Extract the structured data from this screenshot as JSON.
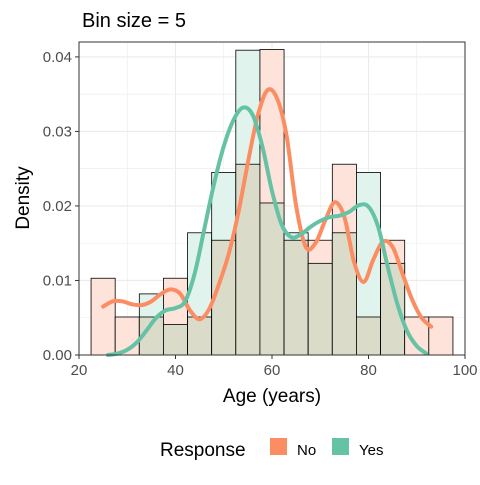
{
  "chart_data": {
    "type": "histogram",
    "title": "Bin size = 5",
    "xlabel": "Age (years)",
    "ylabel": "Density",
    "xlim": [
      20,
      100
    ],
    "ylim": [
      0,
      0.042
    ],
    "x_ticks": [
      20,
      40,
      60,
      80,
      100
    ],
    "y_ticks": [
      0.0,
      0.01,
      0.02,
      0.03,
      0.04
    ],
    "x_tick_labels": [
      "20",
      "40",
      "60",
      "80",
      "100"
    ],
    "y_tick_labels": [
      "0.00",
      "0.01",
      "0.02",
      "0.03",
      "0.04"
    ],
    "grid": true,
    "bin_width": 5,
    "bin_starts": [
      22.5,
      27.5,
      32.5,
      37.5,
      42.5,
      47.5,
      52.5,
      57.5,
      62.5,
      67.5,
      72.5,
      77.5,
      82.5,
      87.5,
      92.5
    ],
    "series": [
      {
        "name": "No",
        "color": "#fc8d62",
        "bin_density": [
          0.0103,
          0.0051,
          0.0051,
          0.0103,
          0.0051,
          0.0154,
          0.0256,
          0.041,
          0.0154,
          0.0154,
          0.0256,
          0.0051,
          0.0154,
          0.0051,
          0.0051
        ],
        "density_curve": [
          [
            25,
            0.0065
          ],
          [
            27,
            0.0072
          ],
          [
            29,
            0.0072
          ],
          [
            31,
            0.0068
          ],
          [
            33,
            0.0067
          ],
          [
            35,
            0.0072
          ],
          [
            37,
            0.0082
          ],
          [
            39,
            0.0088
          ],
          [
            41,
            0.0082
          ],
          [
            43,
            0.006
          ],
          [
            45,
            0.0048
          ],
          [
            47,
            0.0062
          ],
          [
            49,
            0.0095
          ],
          [
            51,
            0.0135
          ],
          [
            53,
            0.019
          ],
          [
            55,
            0.0258
          ],
          [
            57,
            0.032
          ],
          [
            59,
            0.0355
          ],
          [
            61,
            0.0345
          ],
          [
            63,
            0.0295
          ],
          [
            65,
            0.02
          ],
          [
            67,
            0.0145
          ],
          [
            69,
            0.015
          ],
          [
            71,
            0.018
          ],
          [
            73,
            0.0205
          ],
          [
            75,
            0.0185
          ],
          [
            77,
            0.0125
          ],
          [
            79,
            0.0098
          ],
          [
            81,
            0.0128
          ],
          [
            83,
            0.0152
          ],
          [
            85,
            0.0145
          ],
          [
            87,
            0.011
          ],
          [
            89,
            0.0075
          ],
          [
            91,
            0.005
          ],
          [
            93,
            0.0038
          ]
        ]
      },
      {
        "name": "Yes",
        "color": "#66c2a5",
        "bin_density": [
          0.0,
          0.0,
          0.0082,
          0.0041,
          0.0164,
          0.0245,
          0.0409,
          0.0204,
          0.0164,
          0.0123,
          0.0164,
          0.0245,
          0.0123,
          0.0,
          0.0
        ],
        "density_curve": [
          [
            26,
            0.0
          ],
          [
            28,
            0.0002
          ],
          [
            30,
            0.0007
          ],
          [
            32,
            0.0017
          ],
          [
            34,
            0.0033
          ],
          [
            36,
            0.005
          ],
          [
            38,
            0.006
          ],
          [
            40,
            0.0063
          ],
          [
            42,
            0.0072
          ],
          [
            44,
            0.011
          ],
          [
            46,
            0.017
          ],
          [
            48,
            0.023
          ],
          [
            50,
            0.028
          ],
          [
            52,
            0.0315
          ],
          [
            54,
            0.0332
          ],
          [
            56,
            0.0322
          ],
          [
            58,
            0.028
          ],
          [
            60,
            0.022
          ],
          [
            62,
            0.0175
          ],
          [
            64,
            0.0158
          ],
          [
            66,
            0.0162
          ],
          [
            68,
            0.0172
          ],
          [
            70,
            0.018
          ],
          [
            72,
            0.0185
          ],
          [
            74,
            0.0187
          ],
          [
            76,
            0.0192
          ],
          [
            78,
            0.0201
          ],
          [
            80,
            0.0199
          ],
          [
            82,
            0.0172
          ],
          [
            84,
            0.0118
          ],
          [
            86,
            0.0068
          ],
          [
            88,
            0.0032
          ],
          [
            90,
            0.0012
          ],
          [
            92,
            0.0002
          ]
        ]
      }
    ],
    "overlap_color": "#dbdbc9",
    "legend": {
      "title": "Response",
      "position": "bottom",
      "items": [
        "No",
        "Yes"
      ]
    }
  }
}
